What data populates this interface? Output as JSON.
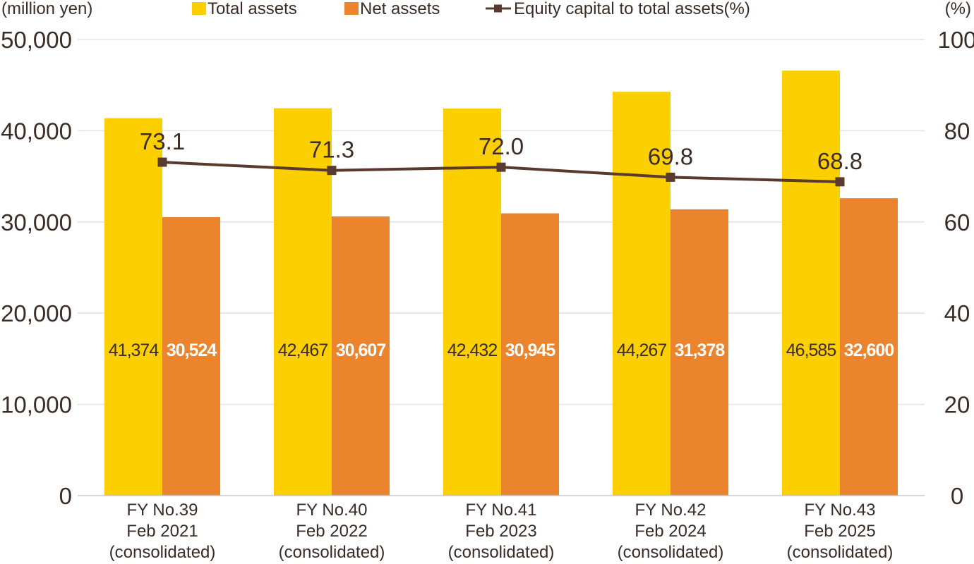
{
  "chart_data": {
    "type": "bar",
    "left_axis_unit": "(million yen)",
    "right_axis_unit": "(%)",
    "categories": [
      [
        "FY No.39",
        "Feb 2021",
        "(consolidated)"
      ],
      [
        "FY No.40",
        "Feb 2022",
        "(consolidated)"
      ],
      [
        "FY No.41",
        "Feb 2023",
        "(consolidated)"
      ],
      [
        "FY No.42",
        "Feb 2024",
        "(consolidated)"
      ],
      [
        "FY No.43",
        "Feb 2025",
        "(consolidated)"
      ]
    ],
    "ylim": [
      0,
      50000
    ],
    "y2lim": [
      0,
      100
    ],
    "left_ticks": [
      {
        "value": 0,
        "label": "0"
      },
      {
        "value": 10000,
        "label": "10,000"
      },
      {
        "value": 20000,
        "label": "20,000"
      },
      {
        "value": 30000,
        "label": "30,000"
      },
      {
        "value": 40000,
        "label": "40,000"
      },
      {
        "value": 50000,
        "label": "50,000"
      }
    ],
    "right_ticks": [
      {
        "value": 0,
        "label": "0"
      },
      {
        "value": 20,
        "label": "20"
      },
      {
        "value": 40,
        "label": "40"
      },
      {
        "value": 60,
        "label": "60"
      },
      {
        "value": 80,
        "label": "80"
      },
      {
        "value": 100,
        "label": "100"
      }
    ],
    "grid": true,
    "legend_position": "top",
    "series": [
      {
        "name": "Total assets",
        "kind": "bar",
        "axis": "left",
        "color": "#FBCF00",
        "label_color": "#3b2c25",
        "values": [
          41374,
          42467,
          42432,
          44267,
          46585
        ],
        "labels": [
          "41,374",
          "42,467",
          "42,432",
          "44,267",
          "46,585"
        ]
      },
      {
        "name": "Net assets",
        "kind": "bar",
        "axis": "left",
        "color": "#EC832D",
        "label_color": "#ffffff",
        "values": [
          30524,
          30607,
          30945,
          31378,
          32600
        ],
        "labels": [
          "30,524",
          "30,607",
          "30,945",
          "31,378",
          "32,600"
        ]
      },
      {
        "name": "Equity capital to total assets(%)",
        "kind": "line",
        "axis": "right",
        "color": "#5a3a2e",
        "values": [
          73.1,
          71.3,
          72.0,
          69.8,
          68.8
        ],
        "labels": [
          "73.1",
          "71.3",
          "72.0",
          "69.8",
          "68.8"
        ]
      }
    ]
  }
}
